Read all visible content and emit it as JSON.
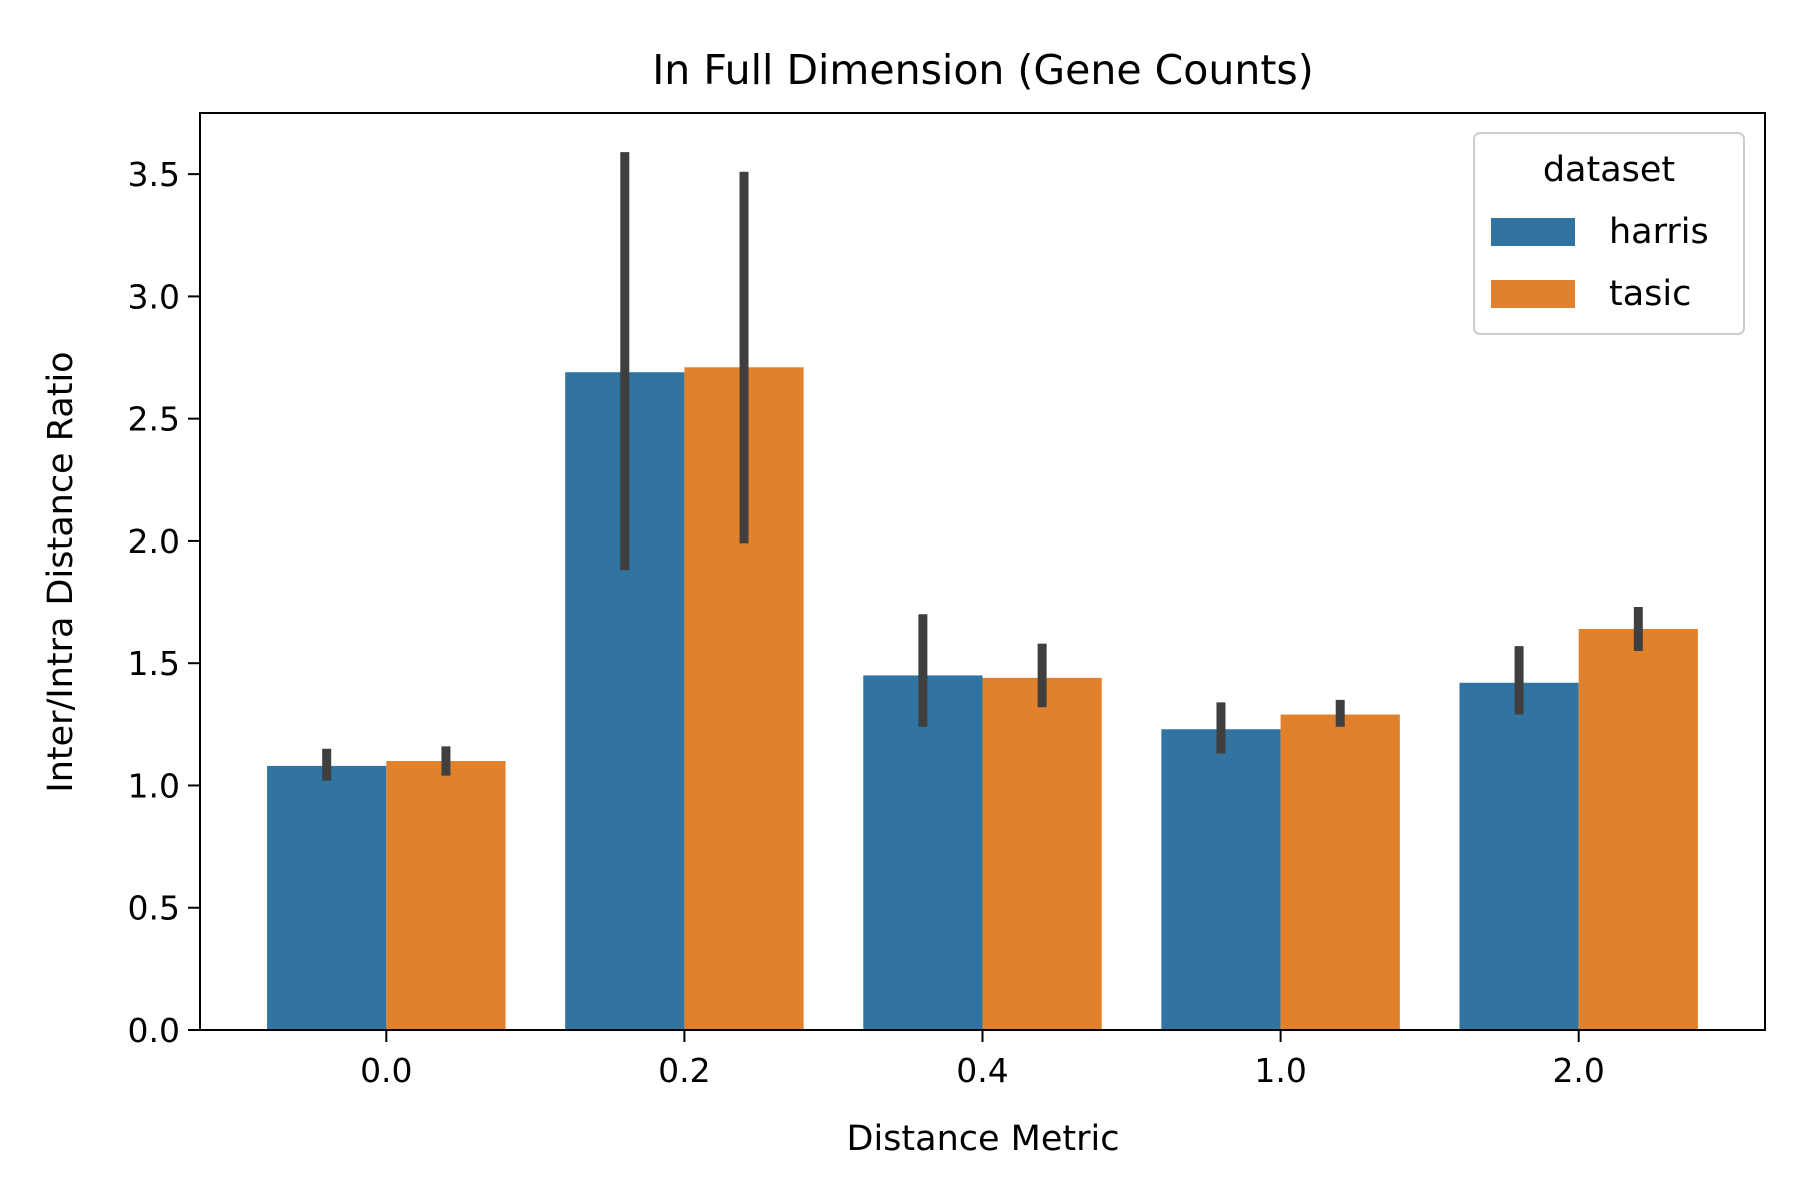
{
  "chart_data": {
    "type": "bar",
    "title": "In Full Dimension (Gene Counts)",
    "xlabel": "Distance Metric",
    "ylabel": "Inter/Intra Distance Ratio",
    "categories": [
      "0.0",
      "0.2",
      "0.4",
      "1.0",
      "2.0"
    ],
    "ylim": [
      0,
      3.75
    ],
    "yticks": [
      0.0,
      0.5,
      1.0,
      1.5,
      2.0,
      2.5,
      3.0,
      3.5
    ],
    "ytick_labels": [
      "0.0",
      "0.5",
      "1.0",
      "1.5",
      "2.0",
      "2.5",
      "3.0",
      "3.5"
    ],
    "grid": false,
    "legend": {
      "title": "dataset",
      "placement": "top-right"
    },
    "series": [
      {
        "name": "harris",
        "color": "#3274a1",
        "values": [
          1.08,
          2.69,
          1.45,
          1.23,
          1.42
        ],
        "error_low": [
          1.02,
          1.88,
          1.24,
          1.13,
          1.29
        ],
        "error_high": [
          1.15,
          3.59,
          1.7,
          1.34,
          1.57
        ]
      },
      {
        "name": "tasic",
        "color": "#e1812c",
        "values": [
          1.1,
          2.71,
          1.44,
          1.29,
          1.64
        ],
        "error_low": [
          1.04,
          1.99,
          1.32,
          1.24,
          1.55
        ],
        "error_high": [
          1.16,
          3.51,
          1.58,
          1.35,
          1.73
        ]
      }
    ],
    "error_color": "#3f3f3f"
  }
}
